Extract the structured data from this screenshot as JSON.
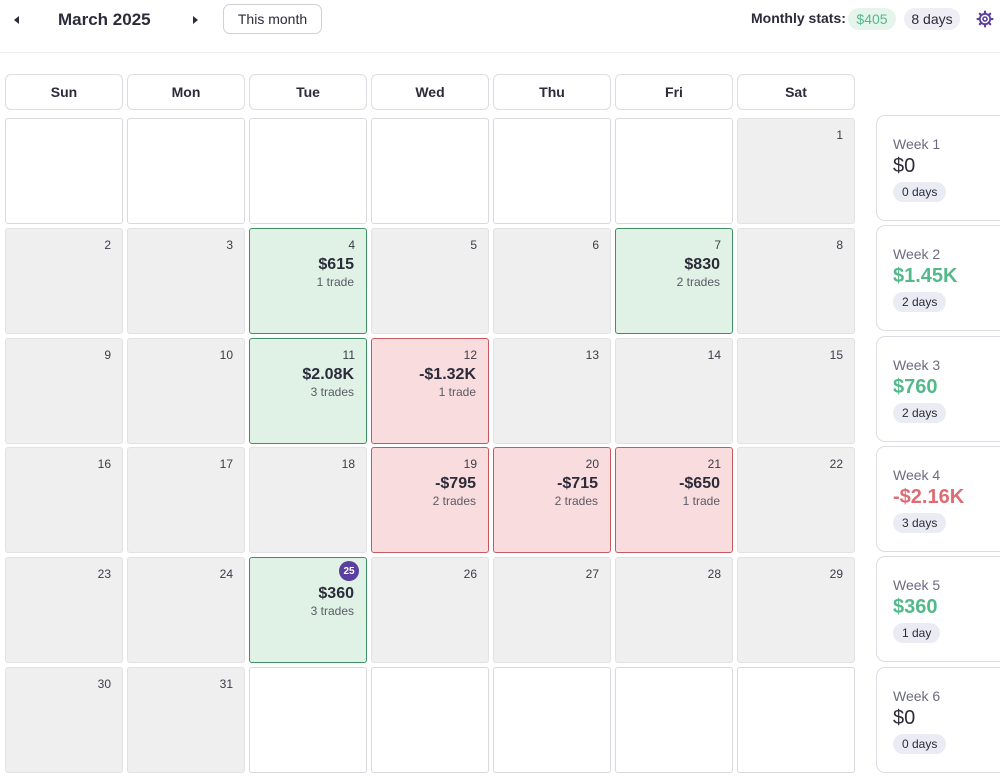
{
  "header": {
    "month_title": "March 2025",
    "this_month_label": "This month",
    "stats_label": "Monthly stats:",
    "monthly_pnl": "$405",
    "monthly_days": "8 days",
    "accent_positive": "#53b98a",
    "accent_negative": "#e06b73",
    "today_color": "#5b3fa0"
  },
  "weekdays": [
    "Sun",
    "Mon",
    "Tue",
    "Wed",
    "Thu",
    "Fri",
    "Sat"
  ],
  "days": [
    {
      "num": "1"
    },
    {
      "num": "2"
    },
    {
      "num": "3"
    },
    {
      "num": "4",
      "pnl": "$615",
      "trades": "1 trade",
      "status": "positive"
    },
    {
      "num": "5"
    },
    {
      "num": "6"
    },
    {
      "num": "7",
      "pnl": "$830",
      "trades": "2 trades",
      "status": "positive"
    },
    {
      "num": "8"
    },
    {
      "num": "9"
    },
    {
      "num": "10"
    },
    {
      "num": "11",
      "pnl": "$2.08K",
      "trades": "3 trades",
      "status": "positive"
    },
    {
      "num": "12",
      "pnl": "-$1.32K",
      "trades": "1 trade",
      "status": "negative"
    },
    {
      "num": "13"
    },
    {
      "num": "14"
    },
    {
      "num": "15"
    },
    {
      "num": "16"
    },
    {
      "num": "17"
    },
    {
      "num": "18"
    },
    {
      "num": "19",
      "pnl": "-$795",
      "trades": "2 trades",
      "status": "negative"
    },
    {
      "num": "20",
      "pnl": "-$715",
      "trades": "2 trades",
      "status": "negative"
    },
    {
      "num": "21",
      "pnl": "-$650",
      "trades": "1 trade",
      "status": "negative"
    },
    {
      "num": "22"
    },
    {
      "num": "23"
    },
    {
      "num": "24"
    },
    {
      "num": "25",
      "pnl": "$360",
      "trades": "3 trades",
      "status": "positive",
      "today": true
    },
    {
      "num": "26"
    },
    {
      "num": "27"
    },
    {
      "num": "28"
    },
    {
      "num": "29"
    },
    {
      "num": "30"
    },
    {
      "num": "31"
    }
  ],
  "weeks": [
    {
      "label": "Week 1",
      "pnl": "$0",
      "days": "0 days",
      "status": "neutral"
    },
    {
      "label": "Week 2",
      "pnl": "$1.45K",
      "days": "2 days",
      "status": "positive"
    },
    {
      "label": "Week 3",
      "pnl": "$760",
      "days": "2 days",
      "status": "positive"
    },
    {
      "label": "Week 4",
      "pnl": "-$2.16K",
      "days": "3 days",
      "status": "negative"
    },
    {
      "label": "Week 5",
      "pnl": "$360",
      "days": "1 day",
      "status": "positive"
    },
    {
      "label": "Week 6",
      "pnl": "$0",
      "days": "0 days",
      "status": "neutral"
    }
  ]
}
